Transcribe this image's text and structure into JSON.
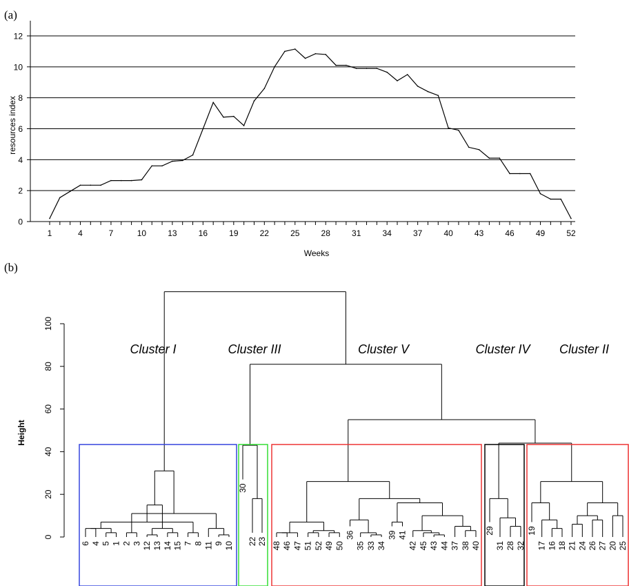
{
  "chart_data": [
    {
      "panel": "(a)",
      "type": "line",
      "xlabel": "Weeks",
      "ylabel": "resources index",
      "xlim": [
        1,
        52
      ],
      "ylim": [
        0,
        12
      ],
      "grid": "horizontal",
      "x_ticks": [
        1,
        4,
        7,
        10,
        13,
        16,
        19,
        22,
        25,
        28,
        31,
        34,
        37,
        40,
        43,
        46,
        49,
        52
      ],
      "y_ticks": [
        0,
        2,
        4,
        6,
        8,
        10,
        12
      ],
      "x": [
        1,
        2,
        3,
        4,
        5,
        6,
        7,
        8,
        9,
        10,
        11,
        12,
        13,
        14,
        15,
        16,
        17,
        18,
        19,
        20,
        21,
        22,
        23,
        24,
        25,
        26,
        27,
        28,
        29,
        30,
        31,
        32,
        33,
        34,
        35,
        36,
        37,
        38,
        39,
        40,
        41,
        42,
        43,
        44,
        45,
        46,
        47,
        48,
        49,
        50,
        51,
        52
      ],
      "values": [
        0.2,
        1.55,
        1.95,
        2.35,
        2.35,
        2.35,
        2.65,
        2.65,
        2.65,
        2.7,
        3.6,
        3.6,
        3.9,
        3.95,
        4.3,
        6.0,
        7.7,
        6.75,
        6.8,
        6.2,
        7.8,
        8.6,
        10.0,
        11.0,
        11.15,
        10.55,
        10.85,
        10.8,
        10.1,
        10.1,
        9.9,
        9.9,
        9.9,
        9.65,
        9.1,
        9.5,
        8.75,
        8.4,
        8.15,
        6.05,
        5.9,
        4.8,
        4.65,
        4.1,
        4.1,
        3.1,
        3.1,
        3.1,
        1.8,
        1.45,
        1.45,
        0.2
      ]
    },
    {
      "panel": "(b)",
      "type": "dendrogram",
      "ylabel": "Height",
      "ylim": [
        0,
        115
      ],
      "y_ticks": [
        0,
        20,
        40,
        60,
        80,
        100
      ],
      "leaves": [
        "6",
        "4",
        "5",
        "1",
        "2",
        "3",
        "12",
        "13",
        "14",
        "15",
        "7",
        "8",
        "11",
        "9",
        "10",
        "30",
        "22",
        "23",
        "48",
        "46",
        "47",
        "51",
        "52",
        "49",
        "50",
        "36",
        "35",
        "33",
        "34",
        "39",
        "41",
        "42",
        "45",
        "43",
        "44",
        "37",
        "38",
        "40",
        "29",
        "31",
        "28",
        "32",
        "19",
        "17",
        "16",
        "18",
        "21",
        "24",
        "26",
        "27",
        "20",
        "25"
      ],
      "clusters": [
        {
          "name": "Cluster I",
          "color": "#3344dd"
        },
        {
          "name": "Cluster III",
          "color": "#33dd33"
        },
        {
          "name": "Cluster V",
          "color": "#ee3333"
        },
        {
          "name": "Cluster IV",
          "color": "#000000"
        },
        {
          "name": "Cluster II",
          "color": "#ee3333"
        }
      ],
      "merges": [
        {
          "a": "6",
          "b": "4",
          "h": 4
        },
        {
          "a": "5",
          "b": "1",
          "h": 2
        },
        {
          "a": "2",
          "b": "3",
          "h": 2
        },
        {
          "a": "12",
          "b": "13",
          "h": 1
        },
        {
          "a": "14",
          "b": "15",
          "h": 2
        },
        {
          "a": "7",
          "b": "8",
          "h": 2
        },
        {
          "a": "9",
          "b": "10",
          "h": 1
        },
        {
          "a": "11",
          "b": "m6",
          "h": 4
        },
        {
          "a": "m0",
          "b": "m1",
          "h": 4
        },
        {
          "a": "m7",
          "b": "m2",
          "h": 11
        },
        {
          "a": "m3",
          "b": "m4",
          "h": 4
        },
        {
          "a": "m5",
          "b": "m8",
          "h": 7
        },
        {
          "a": "m10",
          "b": "m11",
          "h": 15
        },
        {
          "a": "m9",
          "b": "m12",
          "h": 31
        },
        {
          "a": "22",
          "b": "23",
          "h": 18
        },
        {
          "a": "30",
          "b": "m14",
          "h": 43
        },
        {
          "a": "48",
          "b": "46",
          "h": 2
        },
        {
          "a": "47",
          "b": "m16",
          "h": 2
        },
        {
          "a": "51",
          "b": "52",
          "h": 2
        },
        {
          "a": "49",
          "b": "50",
          "h": 2
        },
        {
          "a": "m18",
          "b": "m19",
          "h": 3
        },
        {
          "a": "m17",
          "b": "m20",
          "h": 7
        },
        {
          "a": "33",
          "b": "34",
          "h": 1
        },
        {
          "a": "35",
          "b": "m22",
          "h": 2
        },
        {
          "a": "36",
          "b": "m23",
          "h": 8
        },
        {
          "a": "39",
          "b": "41",
          "h": 7
        },
        {
          "a": "43",
          "b": "44",
          "h": 1
        },
        {
          "a": "45",
          "b": "m26",
          "h": 2
        },
        {
          "a": "42",
          "b": "m27",
          "h": 3
        },
        {
          "a": "38",
          "b": "40",
          "h": 3
        },
        {
          "a": "37",
          "b": "m29",
          "h": 5
        },
        {
          "a": "m28",
          "b": "m30",
          "h": 10
        },
        {
          "a": "m25",
          "b": "m31",
          "h": 16
        },
        {
          "a": "m24",
          "b": "m32",
          "h": 18
        },
        {
          "a": "m21",
          "b": "m33",
          "h": 26
        },
        {
          "a": "28",
          "b": "32",
          "h": 5
        },
        {
          "a": "31",
          "b": "m35",
          "h": 9
        },
        {
          "a": "29",
          "b": "m36",
          "h": 18
        },
        {
          "a": "16",
          "b": "18",
          "h": 4
        },
        {
          "a": "17",
          "b": "m38",
          "h": 8
        },
        {
          "a": "19",
          "b": "m39",
          "h": 16
        },
        {
          "a": "21",
          "b": "24",
          "h": 6
        },
        {
          "a": "26",
          "b": "27",
          "h": 8
        },
        {
          "a": "m41",
          "b": "m42",
          "h": 10
        },
        {
          "a": "20",
          "b": "25",
          "h": 10
        },
        {
          "a": "m43",
          "b": "m44",
          "h": 16
        },
        {
          "a": "m40",
          "b": "m45",
          "h": 26
        },
        {
          "a": "m37",
          "b": "m46",
          "h": 44
        },
        {
          "a": "m34",
          "b": "m47",
          "h": 55
        },
        {
          "a": "m15",
          "b": "m48",
          "h": 81
        },
        {
          "a": "m13",
          "b": "m49",
          "h": 115
        }
      ]
    }
  ]
}
